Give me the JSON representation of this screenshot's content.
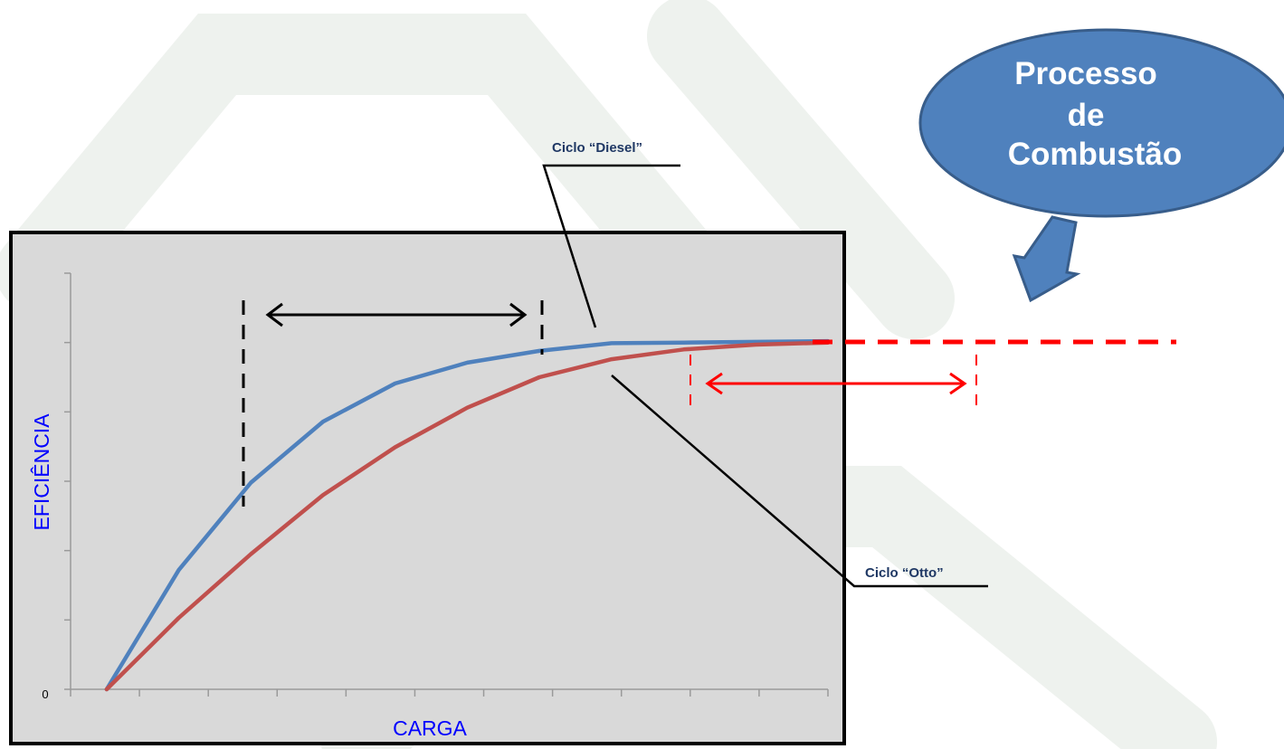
{
  "bubble": {
    "lines": [
      "Processo",
      "de",
      "Combustão"
    ],
    "fill": "#4f81bd",
    "stroke": "#385d8a"
  },
  "callouts": {
    "diesel_label": "Ciclo “Diesel”",
    "otto_label": "Ciclo “Otto”",
    "text_color": "#1f3864"
  },
  "chart_data": {
    "type": "line",
    "xlabel": "CARGA",
    "ylabel": "EFICIÊNCIA",
    "y_tick_labels": [
      "0"
    ],
    "xlim": [
      0,
      10.5
    ],
    "ylim": [
      0,
      6
    ],
    "x_tick_count": 11,
    "y_tick_count": 7,
    "grid": false,
    "plot_background": "#d9d9d9",
    "axis_label_color": "#0000ff",
    "series": [
      {
        "values_x": [
          0.5,
          1.5,
          2.5,
          3.5,
          4.5,
          5.5,
          6.5,
          7.5,
          8.5,
          9.5,
          10.5
        ],
        "values_y": [
          0,
          1.72,
          2.98,
          3.86,
          4.41,
          4.71,
          4.88,
          4.99,
          5.0,
          5.01,
          5.02
        ],
        "color": "#4f81bd"
      },
      {
        "values_x": [
          0.5,
          1.5,
          2.5,
          3.5,
          4.5,
          5.5,
          6.5,
          7.5,
          8.5,
          9.5,
          10.5
        ],
        "values_y": [
          0,
          1.03,
          1.95,
          2.8,
          3.49,
          4.06,
          4.5,
          4.76,
          4.9,
          4.97,
          5.0
        ],
        "color": "#c0504d"
      }
    ]
  },
  "annotation_colors": {
    "black": "#000000",
    "red": "#ff0000",
    "arrow_fill": "#4f81bd",
    "arrow_stroke": "#385d8a"
  }
}
